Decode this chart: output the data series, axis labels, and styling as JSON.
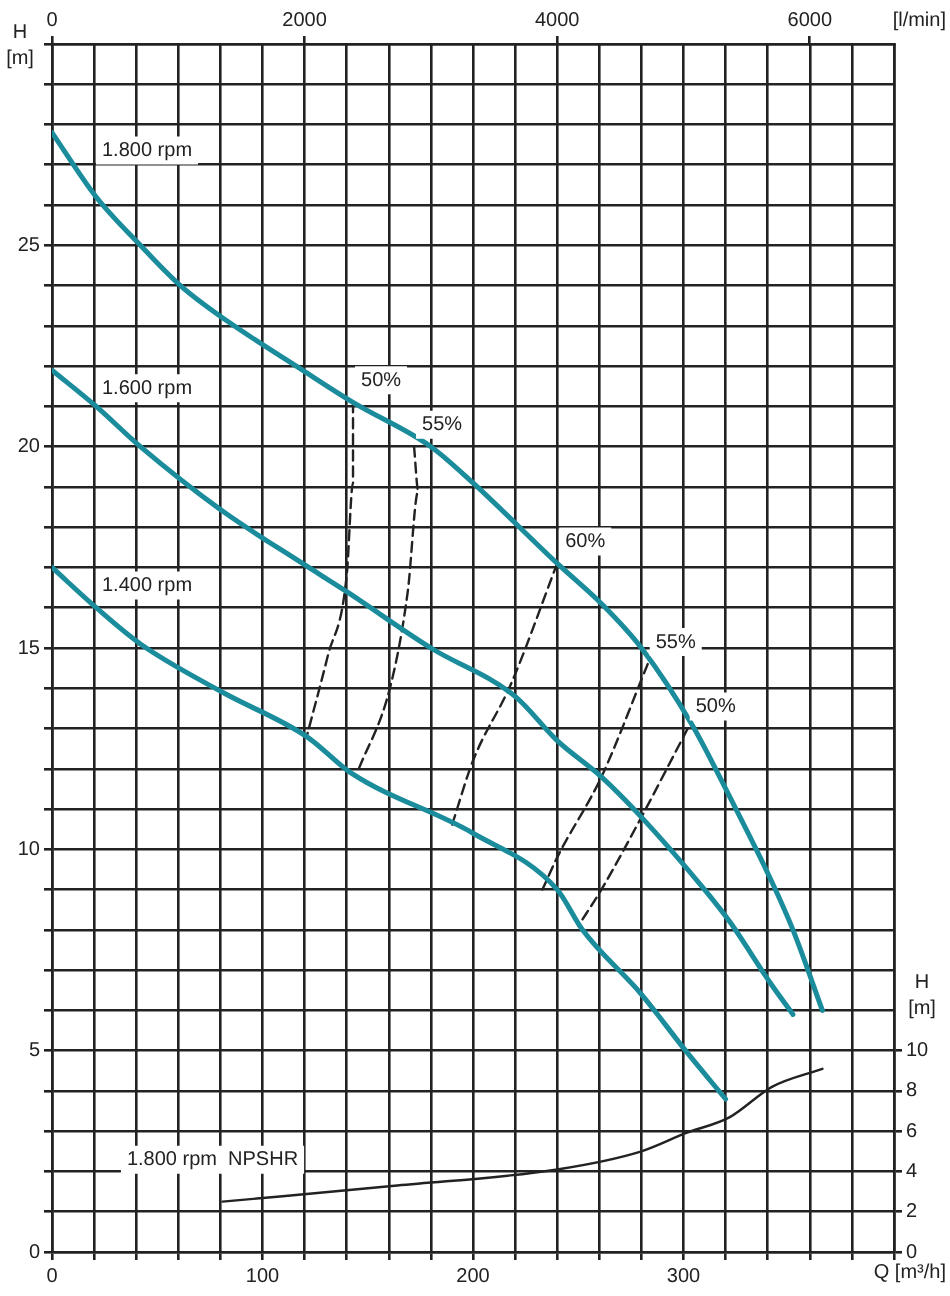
{
  "chart_data": {
    "type": "line",
    "xlabel": "Q [m³/h]",
    "ylabel": "H [m]",
    "y2label": "H [m]",
    "x2label": "[l/min]",
    "xlim": [
      0,
      400
    ],
    "xticks": [
      0,
      {
        "value": 20,
        "label": null
      },
      {
        "value": 40,
        "label": null
      },
      {
        "value": 60,
        "label": null
      },
      {
        "value": 80,
        "label": null
      },
      100,
      {
        "value": 120,
        "label": null
      },
      {
        "value": 140,
        "label": null
      },
      {
        "value": 160,
        "label": null
      },
      {
        "value": 180,
        "label": null
      },
      200,
      {
        "value": 220,
        "label": null
      },
      {
        "value": 240,
        "label": null
      },
      {
        "value": 260,
        "label": null
      },
      {
        "value": 280,
        "label": null
      },
      300,
      {
        "value": 320,
        "label": null
      },
      {
        "value": 340,
        "label": null
      },
      {
        "value": 360,
        "label": null
      },
      {
        "value": 380,
        "label": null
      },
      {
        "value": 400,
        "label": null
      }
    ],
    "x2lim": [
      0,
      6667
    ],
    "x2ticks": [
      0,
      2000,
      4000,
      6000
    ],
    "ylim": [
      0,
      30
    ],
    "yticks": [
      0,
      {
        "value": 1,
        "label": null
      },
      {
        "value": 2,
        "label": null
      },
      {
        "value": 3,
        "label": null
      },
      {
        "value": 4,
        "label": null
      },
      5,
      {
        "value": 6,
        "label": null
      },
      {
        "value": 7,
        "label": null
      },
      {
        "value": 8,
        "label": null
      },
      {
        "value": 9,
        "label": null
      },
      10,
      {
        "value": 11,
        "label": null
      },
      {
        "value": 12,
        "label": null
      },
      {
        "value": 13,
        "label": null
      },
      {
        "value": 14,
        "label": null
      },
      15,
      {
        "value": 16,
        "label": null
      },
      {
        "value": 17,
        "label": null
      },
      {
        "value": 18,
        "label": null
      },
      {
        "value": 19,
        "label": null
      },
      20,
      {
        "value": 21,
        "label": null
      },
      {
        "value": 22,
        "label": null
      },
      {
        "value": 23,
        "label": null
      },
      {
        "value": 24,
        "label": null
      },
      25,
      {
        "value": 26,
        "label": null
      },
      {
        "value": 27,
        "label": null
      },
      {
        "value": 28,
        "label": null
      },
      {
        "value": 29,
        "label": null
      },
      {
        "value": 30,
        "label": null
      }
    ],
    "y2lim": [
      0,
      60
    ],
    "y2ticks": [
      0,
      2,
      4,
      6,
      8,
      10
    ],
    "grid": true,
    "legend": false,
    "marker": "none",
    "line_style": "solid",
    "series": [
      {
        "name": "1.800 rpm",
        "color": "#1b8c9c",
        "x": [
          0,
          21,
          42,
          61,
          81,
          119,
          143,
          180,
          200,
          240,
          261,
          280,
          304,
          322,
          341,
          352,
          366
        ],
        "values": [
          27.8,
          26.2,
          25.0,
          24.0,
          23.2,
          21.9,
          21.1,
          20.0,
          19.1,
          17.1,
          16.1,
          15.0,
          13.1,
          11.3,
          9.3,
          8.0,
          6.0
        ]
      },
      {
        "name": "1.600 rpm",
        "color": "#1b8c9c",
        "x": [
          0,
          21,
          42,
          81,
          119,
          140,
          180,
          220,
          240,
          261,
          280,
          310,
          322,
          341,
          352
        ],
        "values": [
          21.9,
          21.0,
          20.0,
          18.4,
          17.1,
          16.4,
          15.0,
          13.8,
          12.7,
          11.8,
          10.8,
          9.0,
          8.2,
          6.7,
          5.9
        ]
      },
      {
        "name": "1.400 rpm",
        "color": "#1b8c9c",
        "x": [
          0,
          21,
          42,
          81,
          121,
          142,
          200,
          240,
          252,
          280,
          301,
          320
        ],
        "values": [
          17.0,
          16.0,
          15.1,
          13.9,
          12.8,
          11.9,
          10.4,
          9.0,
          8.0,
          6.4,
          5.0,
          3.8
        ]
      },
      {
        "name": "50%",
        "color": "#222222",
        "line_style": "dashed",
        "x": [
          143,
          143,
          140,
          131,
          121
        ],
        "values": [
          21.1,
          19.1,
          16.8,
          14.8,
          12.8
        ]
      },
      {
        "name": "55%",
        "color": "#222222",
        "line_style": "dashed",
        "x": [
          172,
          174,
          169,
          161,
          145
        ],
        "values": [
          20.0,
          18.9,
          16.4,
          14.1,
          11.9
        ]
      },
      {
        "name": "60%",
        "color": "#222222",
        "line_style": "dashed",
        "x": [
          240,
          218,
          200,
          190
        ],
        "values": [
          17.1,
          14.1,
          12.2,
          10.6
        ]
      },
      {
        "name": "55%",
        "color": "#222222",
        "line_style": "dashed",
        "x": [
          283,
          261,
          240,
          233
        ],
        "values": [
          14.6,
          11.8,
          9.8,
          9.0
        ]
      },
      {
        "name": "50%",
        "color": "#222222",
        "line_style": "dashed",
        "x": [
          302,
          280,
          261,
          250
        ],
        "values": [
          13.0,
          10.8,
          9.0,
          8.1
        ]
      },
      {
        "name": "1.800 rpm  NPSHR",
        "color": "#222222",
        "axis": "y2",
        "x": [
          81,
          164,
          240,
          280,
          301,
          322,
          342,
          366
        ],
        "values": [
          2.5,
          3.3,
          4.1,
          5.0,
          5.9,
          6.7,
          8.2,
          9.1
        ]
      }
    ]
  }
}
